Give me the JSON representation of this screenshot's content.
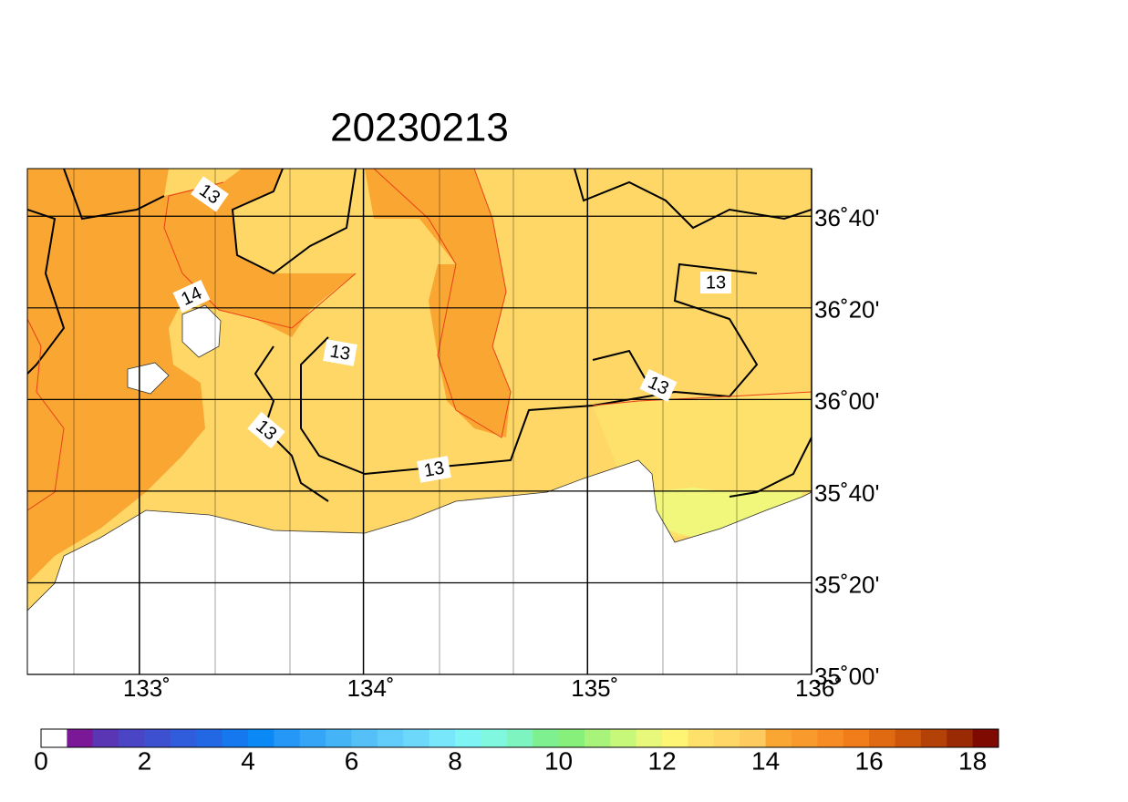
{
  "map": {
    "title": "20230213",
    "xlim": [
      132.5,
      136
    ],
    "ylim": [
      35,
      36.84
    ],
    "xticks": [
      {
        "value": 133,
        "label": "133˚"
      },
      {
        "value": 134,
        "label": "134˚"
      },
      {
        "value": 135,
        "label": "135˚"
      },
      {
        "value": 136,
        "label": "136˚"
      }
    ],
    "yticks": [
      {
        "value": 35,
        "label": "35˚00'"
      },
      {
        "value": 35.3333,
        "label": "35˚20'"
      },
      {
        "value": 35.6667,
        "label": "35˚40'"
      },
      {
        "value": 36,
        "label": "36˚00'"
      },
      {
        "value": 36.3333,
        "label": "36˚20'"
      },
      {
        "value": 36.6667,
        "label": "36˚40'"
      }
    ],
    "contour_labels": [
      13,
      14,
      13,
      13,
      13,
      13,
      13
    ],
    "colorbar": {
      "range": [
        0,
        18.5
      ],
      "ticks": [
        0,
        2,
        4,
        6,
        8,
        10,
        12,
        14,
        16,
        18
      ],
      "colors": [
        "#ffffff",
        "#7a1898",
        "#5a36b4",
        "#4a45c5",
        "#3d50d0",
        "#2f5ddc",
        "#2268e4",
        "#1578ee",
        "#0a88f5",
        "#2598f7",
        "#35a6f7",
        "#45b4f7",
        "#55c0f8",
        "#62ccfa",
        "#6ed8fb",
        "#78e6fb",
        "#7ef4f4",
        "#80f8e0",
        "#7ef4c0",
        "#7ef090",
        "#86f07a",
        "#a8f47a",
        "#c8f87a",
        "#e8f87a",
        "#fef574",
        "#fee16a",
        "#fed766",
        "#fdcb5e",
        "#faa632",
        "#f99a2c",
        "#f88c24",
        "#f07c1a",
        "#e06a12",
        "#cc560a",
        "#b44206",
        "#9a2a04",
        "#7e0a02"
      ]
    }
  }
}
